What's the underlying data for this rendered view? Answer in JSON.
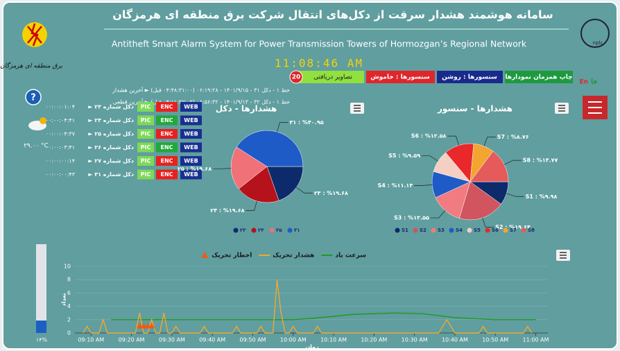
{
  "header": {
    "title": "سامانه هوشمند هشدار سرقت از دکل‌های انتقال شرکت برق منطقه ای هرمزگان",
    "subtitle": "Antitheft Smart Alarm System for Power Transmission Towers of Hormozgan’s Regional Network",
    "clock": "11:08:46 AM",
    "logo_text": "برق منطقه ای هرمزگان",
    "logo_right": "nplc"
  },
  "languages": [
    "En",
    "فا"
  ],
  "buttons": {
    "print": "چاپ همزمان نمودارها",
    "sensors_on": "سنسورها : روشن",
    "sensors_off": "سنسورها : خاموش",
    "images": "تصاویر دریافتی",
    "images_count": "20"
  },
  "status": [
    "خط ۱ - دکل ۳۱ - ۱۴۰۱/۹/۱۵ - ۰۶:۱۹:۲۸ (۰۴:۴۸:۳۱:۰۰ قبل) ► آخرین هشدار",
    "خط ۱ - دکل ۳۲ - ۱۴۰۱/۹/۱۳ - ۰۶:۵۶:۳۲ (۰۴:۱۱:۲۷:۰۲ قبل) ► آخرین قطعی"
  ],
  "help": "?",
  "weather": {
    "temperature": "۲۹.۰۰ °C"
  },
  "battery": {
    "value": 14,
    "label": "۱۴%"
  },
  "towers": {
    "buttons": [
      "PIC",
      "ENC",
      "WEB"
    ],
    "rows": [
      {
        "name": "► دکل شماره ۲۳",
        "time": "۰۰:۰۰:۰۱:۰۴",
        "enc_color": "#e8201f"
      },
      {
        "name": "► دکل شماره ۲۴",
        "time": "۰۰:۰۰:۰۴:۴۱",
        "enc_color": "#22a83a"
      },
      {
        "name": "► دکل شماره ۲۵",
        "time": "۰۰:۰۰:۰۴:۳۷",
        "enc_color": "#e8201f"
      },
      {
        "name": "► دکل شماره ۲۶",
        "time": "۰۰:۰۰:۰۳:۴۱",
        "enc_color": "#22a83a"
      },
      {
        "name": "► دکل شماره ۲۷",
        "time": "۰۰:۰۰:۰۰:۱۴",
        "enc_color": "#e8201f"
      },
      {
        "name": "► دکل شماره ۳۱",
        "time": "۰۰:۰۰:۰۰:۴۳",
        "enc_color": "#e8201f"
      }
    ]
  },
  "chart_data": [
    {
      "type": "pie",
      "title": "هشدارها - دکل",
      "categories": [
        "۲۳",
        "۲۴",
        "۲۵",
        "۳۱"
      ],
      "values": [
        19.68,
        19.68,
        19.68,
        40.95
      ],
      "value_labels": [
        "۲۳ : %۱۹.۶۸",
        "۲۴ : %۱۹.۶۸",
        "۲۵ : %۱۹.۶۸",
        "۳۱ : %۴۰.۹۵"
      ],
      "colors": [
        "#0d2a6b",
        "#b5121b",
        "#f07178",
        "#1e5bc6"
      ]
    },
    {
      "type": "pie",
      "title": "هشدارها - سنسور",
      "categories": [
        "S1",
        "S2",
        "S3",
        "S4",
        "S5",
        "S6",
        "S7",
        "S8"
      ],
      "values": [
        9.98,
        19.64,
        13.55,
        11.14,
        9.59,
        12.58,
        8.76,
        14.77
      ],
      "value_labels": [
        "S1 : %۹.۹۸",
        "S2 : %۱۹.۶۴",
        "S3 : %۱۳.۵۵",
        "S4 : %۱۱.۱۴",
        "S5 : %۹.۵۹",
        "S6 : %۱۲.۵۸",
        "S7 : %۸.۷۶",
        "S8 : %۱۴.۷۷"
      ],
      "colors": [
        "#0d2a6b",
        "#d0555e",
        "#f07b80",
        "#1e5bc6",
        "#f5cfc4",
        "#e8282a",
        "#f4a431",
        "#e55b5b"
      ]
    },
    {
      "type": "line",
      "y_label": "تعداد",
      "x_label": "زمان",
      "xlim": [
        546,
        663
      ],
      "ylim": [
        0,
        10
      ],
      "yticks": [
        0,
        2,
        4,
        6,
        8,
        10
      ],
      "xticks": [
        {
          "value": 550,
          "label": "09:10 AM"
        },
        {
          "value": 560,
          "label": "09:20 AM"
        },
        {
          "value": 570,
          "label": "09:30 AM"
        },
        {
          "value": 580,
          "label": "09:40 AM"
        },
        {
          "value": 590,
          "label": "09:50 AM"
        },
        {
          "value": 600,
          "label": "10:00 AM"
        },
        {
          "value": 610,
          "label": "10:10 AM"
        },
        {
          "value": 620,
          "label": "10:20 AM"
        },
        {
          "value": 630,
          "label": "10:30 AM"
        },
        {
          "value": 640,
          "label": "10:40 AM"
        },
        {
          "value": 650,
          "label": "10:50 AM"
        },
        {
          "value": 660,
          "label": "11:00 AM"
        }
      ],
      "grid": true,
      "series": [
        {
          "name": "سرعت باد",
          "color": "#1f9a1f",
          "x": [
            555,
            600,
            605,
            615,
            625,
            632,
            640,
            650,
            660
          ],
          "values": [
            2,
            2,
            2.2,
            2.8,
            3,
            2.9,
            2.3,
            2,
            2
          ]
        },
        {
          "name": "هشدار تحریک",
          "color": "#f0a830",
          "x": [
            548,
            549,
            550,
            552,
            553,
            554,
            561,
            562,
            563,
            564,
            565,
            566,
            567,
            568,
            569,
            570,
            571,
            572,
            577,
            578,
            579,
            585,
            586,
            587,
            591,
            592,
            593,
            595,
            596,
            597,
            598,
            599,
            600,
            601,
            605,
            606,
            607,
            636,
            637,
            638,
            639,
            640,
            646,
            647,
            648,
            657,
            658,
            659
          ],
          "values": [
            0,
            1,
            0,
            0,
            2,
            0,
            0,
            3,
            0,
            0,
            2,
            0,
            0,
            3,
            0,
            0,
            1,
            0,
            0,
            1,
            0,
            0,
            1,
            0,
            0,
            1,
            0,
            0,
            8,
            3,
            0,
            0,
            1,
            0,
            0,
            1,
            0,
            0,
            1,
            2,
            1,
            0,
            0,
            1,
            0,
            0,
            1,
            0
          ]
        },
        {
          "name": "اخطار تحریک",
          "color": "#f05a14",
          "marker": "triangle",
          "x": [
            562,
            563,
            564,
            565
          ],
          "values": [
            1,
            1,
            1,
            1
          ]
        }
      ]
    }
  ]
}
